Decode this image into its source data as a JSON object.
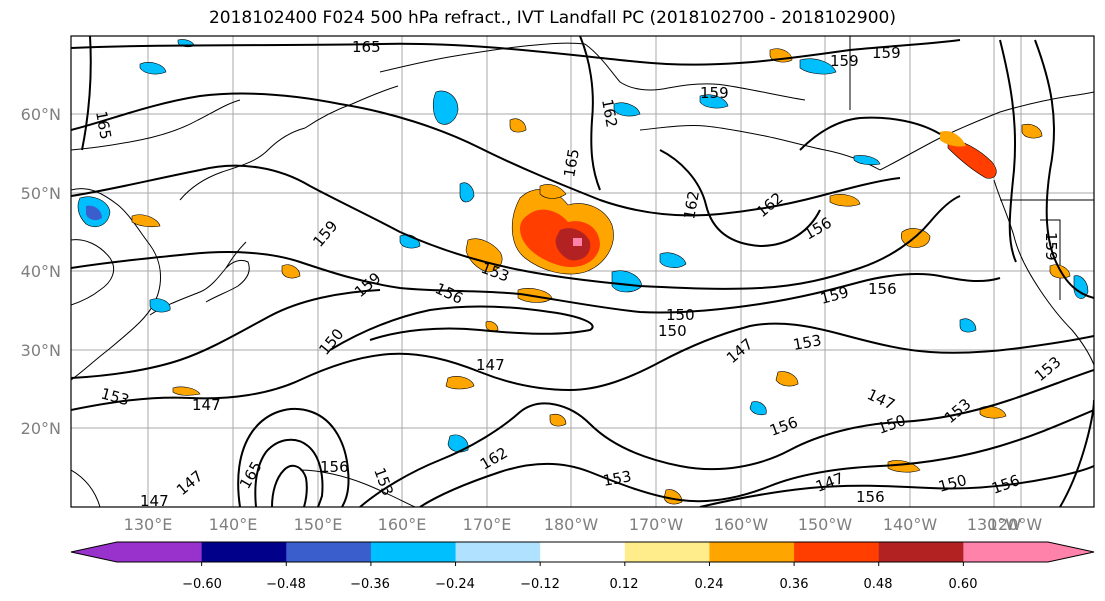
{
  "title": "2018102400 F024 500 hPa refract., IVT Landfall PC (2018102700 - 2018102900)",
  "map": {
    "lat_labels": [
      "60°N",
      "50°N",
      "40°N",
      "30°N",
      "20°N"
    ],
    "lon_labels": [
      "130°E",
      "140°E",
      "150°E",
      "160°E",
      "170°E",
      "180°W",
      "170°W",
      "160°W",
      "150°W",
      "140°W",
      "130°W",
      "120°W"
    ],
    "contour_labels": [
      "165",
      "159",
      "159",
      "162",
      "165",
      "159",
      "162",
      "162",
      "165",
      "159",
      "153",
      "159",
      "156",
      "156",
      "159",
      "156",
      "150",
      "150",
      "150",
      "153",
      "147",
      "147",
      "153",
      "147",
      "147",
      "150",
      "162",
      "153",
      "156",
      "147",
      "165",
      "156",
      "153",
      "147",
      "153",
      "150",
      "153",
      "156",
      "147",
      "156",
      "159"
    ]
  },
  "colorbar": {
    "colors": [
      "#9932cc",
      "#00008b",
      "#3a5fcd",
      "#00bfff",
      "#b0e2ff",
      "#ffffff",
      "#ffec8b",
      "#ffa500",
      "#ff3e00",
      "#b22222",
      "#ff82ab"
    ],
    "tick_labels": [
      "−0.60",
      "−0.48",
      "−0.36",
      "−0.24",
      "−0.12",
      "0.12",
      "0.24",
      "0.36",
      "0.48",
      "0.60"
    ]
  }
}
